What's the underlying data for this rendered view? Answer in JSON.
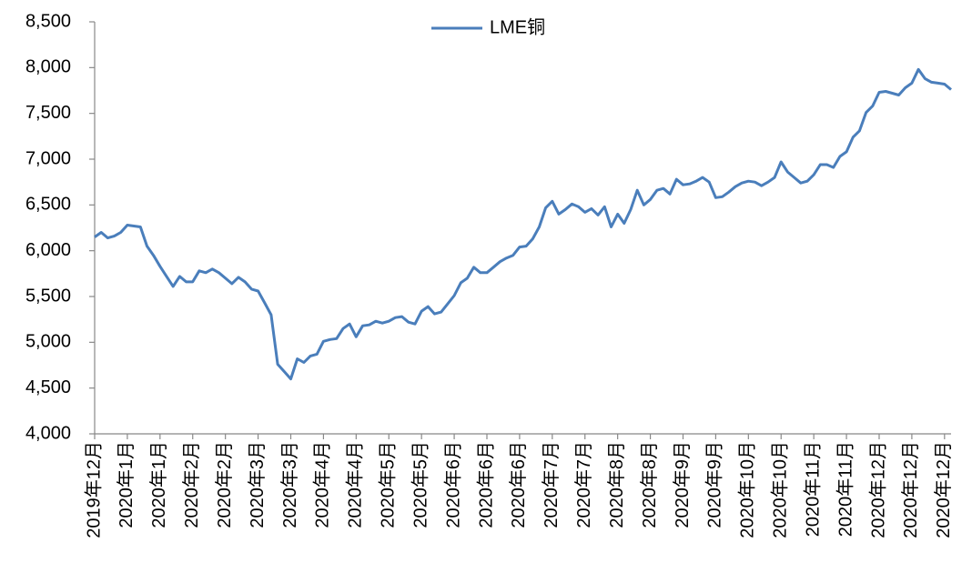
{
  "chart_data": {
    "type": "line",
    "series": [
      {
        "name": "LME铜",
        "color": "#4a7ebb",
        "values": [
          6150,
          6200,
          6140,
          6160,
          6200,
          6280,
          6270,
          6260,
          6050,
          5950,
          5830,
          5720,
          5610,
          5720,
          5660,
          5660,
          5780,
          5760,
          5800,
          5760,
          5700,
          5640,
          5710,
          5660,
          5580,
          5560,
          5430,
          5300,
          4760,
          4680,
          4600,
          4820,
          4780,
          4850,
          4870,
          5010,
          5030,
          5040,
          5150,
          5200,
          5060,
          5180,
          5190,
          5230,
          5210,
          5230,
          5270,
          5280,
          5220,
          5200,
          5340,
          5390,
          5310,
          5330,
          5420,
          5510,
          5650,
          5700,
          5820,
          5760,
          5760,
          5820,
          5880,
          5920,
          5950,
          6040,
          6050,
          6130,
          6260,
          6470,
          6540,
          6400,
          6450,
          6510,
          6480,
          6420,
          6460,
          6390,
          6480,
          6260,
          6400,
          6300,
          6450,
          6660,
          6500,
          6560,
          6660,
          6680,
          6620,
          6780,
          6720,
          6730,
          6760,
          6800,
          6750,
          6580,
          6590,
          6640,
          6700,
          6740,
          6760,
          6750,
          6710,
          6750,
          6800,
          6970,
          6860,
          6800,
          6740,
          6760,
          6830,
          6940,
          6940,
          6910,
          7030,
          7080,
          7240,
          7310,
          7510,
          7580,
          7730,
          7740,
          7720,
          7700,
          7780,
          7830,
          7980,
          7880,
          7840,
          7830,
          7820,
          7760
        ]
      }
    ],
    "ylim": [
      4000,
      8500
    ],
    "yticks": [
      {
        "value": 4000,
        "label": "4,000"
      },
      {
        "value": 4500,
        "label": "4,500"
      },
      {
        "value": 5000,
        "label": "5,000"
      },
      {
        "value": 5500,
        "label": "5,500"
      },
      {
        "value": 6000,
        "label": "6,000"
      },
      {
        "value": 6500,
        "label": "6,500"
      },
      {
        "value": 7000,
        "label": "7,000"
      },
      {
        "value": 7500,
        "label": "7,500"
      },
      {
        "value": 8000,
        "label": "8,000"
      },
      {
        "value": 8500,
        "label": "8,500"
      }
    ],
    "xlim": [
      0,
      131
    ],
    "xticks": [
      {
        "value": 0,
        "label": "2019年12月"
      },
      {
        "value": 5,
        "label": "2020年1月"
      },
      {
        "value": 10,
        "label": "2020年1月"
      },
      {
        "value": 15,
        "label": "2020年2月"
      },
      {
        "value": 20,
        "label": "2020年2月"
      },
      {
        "value": 25,
        "label": "2020年3月"
      },
      {
        "value": 30,
        "label": "2020年3月"
      },
      {
        "value": 35,
        "label": "2020年4月"
      },
      {
        "value": 40,
        "label": "2020年4月"
      },
      {
        "value": 45,
        "label": "2020年5月"
      },
      {
        "value": 50,
        "label": "2020年5月"
      },
      {
        "value": 55,
        "label": "2020年6月"
      },
      {
        "value": 60,
        "label": "2020年6月"
      },
      {
        "value": 65,
        "label": "2020年6月"
      },
      {
        "value": 70,
        "label": "2020年7月"
      },
      {
        "value": 75,
        "label": "2020年7月"
      },
      {
        "value": 80,
        "label": "2020年8月"
      },
      {
        "value": 85,
        "label": "2020年8月"
      },
      {
        "value": 90,
        "label": "2020年9月"
      },
      {
        "value": 95,
        "label": "2020年9月"
      },
      {
        "value": 100,
        "label": "2020年10月"
      },
      {
        "value": 105,
        "label": "2020年10月"
      },
      {
        "value": 110,
        "label": "2020年11月"
      },
      {
        "value": 115,
        "label": "2020年11月"
      },
      {
        "value": 120,
        "label": "2020年12月"
      },
      {
        "value": 125,
        "label": "2020年12月"
      },
      {
        "value": 130,
        "label": "2020年12月"
      }
    ],
    "legend": "top",
    "grid": false
  }
}
